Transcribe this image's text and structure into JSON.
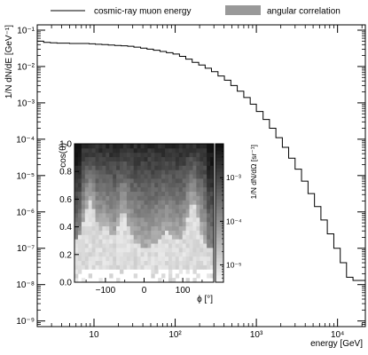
{
  "chart_data": [
    {
      "type": "line",
      "style": "step histogram",
      "xlabel": "energy [GeV]",
      "ylabel": "1/N dN/dE [GeV⁻¹]",
      "xscale": "log",
      "yscale": "log",
      "xlim": [
        2,
        22000
      ],
      "ylim": [
        7e-10,
        0.14
      ],
      "grid": false,
      "legend_position": "top",
      "x_tick_labels": [
        "10",
        "10²",
        "10³",
        "10⁴"
      ],
      "x_tick_values": [
        10,
        100,
        1000,
        10000
      ],
      "y_tick_labels": [
        "10⁻⁹",
        "10⁻⁸",
        "10⁻⁷",
        "10⁻⁶",
        "10⁻⁵",
        "10⁻⁴",
        "10⁻³",
        "10⁻²",
        "10⁻¹"
      ],
      "y_tick_values": [
        1e-09,
        1e-08,
        1e-07,
        1e-06,
        1e-05,
        0.0001,
        0.001,
        0.01,
        0.1
      ],
      "series": [
        {
          "name": "cosmic-ray muon energy",
          "color": "#000000",
          "bin_edges": [
            2,
            2.4,
            2.9,
            3.5,
            4.2,
            5,
            6,
            7.2,
            8.7,
            10.4,
            12.5,
            15,
            18,
            21.6,
            26,
            31,
            37.5,
            45,
            54,
            65,
            78,
            94,
            113,
            135,
            162,
            195,
            234,
            280,
            337,
            404,
            485,
            582,
            700,
            840,
            1000,
            1210,
            1450,
            1740,
            2090,
            2500,
            3000,
            3600,
            4330,
            5200,
            6240,
            7480,
            9000,
            10800,
            12900,
            15500,
            18600,
            22000
          ],
          "values": [
            0.05,
            0.046,
            0.045,
            0.044,
            0.044,
            0.043,
            0.043,
            0.043,
            0.042,
            0.041,
            0.04,
            0.039,
            0.038,
            0.037,
            0.036,
            0.034,
            0.032,
            0.03,
            0.028,
            0.026,
            0.024,
            0.022,
            0.019,
            0.016,
            0.013,
            0.011,
            0.009,
            0.0072,
            0.0055,
            0.0042,
            0.003,
            0.0021,
            0.0014,
            0.00092,
            0.00058,
            0.00035,
            0.0002,
            0.00011,
            6e-05,
            3e-05,
            1.5e-05,
            7e-06,
            3.2e-06,
            1.4e-06,
            6e-07,
            2.5e-07,
            1e-07,
            4e-08,
            1.6e-08,
            1.3e-08,
            1.3e-08
          ]
        },
        {
          "name": "angular correlation",
          "color": "#999999"
        }
      ]
    },
    {
      "type": "heatmap",
      "xlabel": "ϕ [°]",
      "ylabel": "cos(θ)",
      "zlabel": "1/N dN/dΩ [sr⁻¹]",
      "xlim": [
        -180,
        180
      ],
      "ylim": [
        0,
        1
      ],
      "zscale": "log",
      "zlim": [
        4e-06,
        0.006
      ],
      "x_tick_labels": [
        "−100",
        "0",
        "100"
      ],
      "x_tick_values": [
        -100,
        0,
        100
      ],
      "y_tick_labels": [
        "0.0",
        "0.2",
        "0.4",
        "0.6",
        "0.8",
        "1.0"
      ],
      "y_tick_values": [
        0,
        0.2,
        0.4,
        0.6,
        0.8,
        1.0
      ],
      "z_tick_labels": [
        "10⁻⁵",
        "10⁻⁴",
        "10⁻³"
      ],
      "z_tick_values": [
        1e-05,
        0.0001,
        0.001
      ],
      "colormap": [
        "#ffffff",
        "#111111"
      ]
    }
  ]
}
